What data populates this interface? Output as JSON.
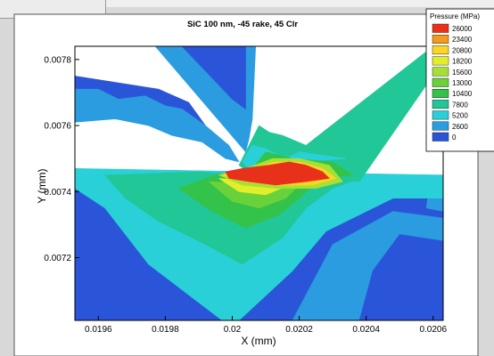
{
  "chart_data": {
    "type": "heatmap",
    "title": "SiC 100 nm, -45 rake, 45 Clr",
    "xlabel": "X (mm)",
    "ylabel": "Y (mm)",
    "xlim": [
      0.01953,
      0.02063
    ],
    "ylim": [
      0.00701,
      0.00784
    ],
    "x_ticks": [
      "0.0196",
      "0.0198",
      "0.02",
      "0.0202",
      "0.0204",
      "0.0206"
    ],
    "x_tick_values": [
      0.0196,
      0.0198,
      0.02,
      0.0202,
      0.0204,
      0.0206
    ],
    "y_ticks": [
      "0.0072",
      "0.0074",
      "0.0076",
      "0.0078"
    ],
    "y_tick_values": [
      0.0072,
      0.0074,
      0.0076,
      0.0078
    ],
    "legend": {
      "title": "Pressure (MPa)",
      "position": "top-right",
      "levels": [
        "26000",
        "23400",
        "20800",
        "18200",
        "15600",
        "13000",
        "10400",
        "7800",
        "5200",
        "2600",
        "0"
      ],
      "colors": [
        "#e8311b",
        "#f59a1d",
        "#fbd624",
        "#e3ee2a",
        "#a6e033",
        "#69d23b",
        "#33c24a",
        "#22c798",
        "#2ad0d8",
        "#2b9cdf",
        "#2a55d8"
      ]
    },
    "regions": [
      {
        "level": "0",
        "points": [
          [
            0.01953,
            0.00701
          ],
          [
            0.02063,
            0.00701
          ],
          [
            0.02063,
            0.00745
          ],
          [
            0.0202,
            0.00744
          ],
          [
            0.0199,
            0.00745
          ],
          [
            0.01953,
            0.00747
          ]
        ]
      },
      {
        "level": "2600",
        "points": [
          [
            0.02018,
            0.00701
          ],
          [
            0.02063,
            0.00701
          ],
          [
            0.02063,
            0.00732
          ],
          [
            0.02048,
            0.00734
          ],
          [
            0.0203,
            0.00724
          ]
        ]
      },
      {
        "level": "0",
        "points": [
          [
            0.02038,
            0.00701
          ],
          [
            0.02063,
            0.00701
          ],
          [
            0.02063,
            0.00725
          ],
          [
            0.0205,
            0.00727
          ],
          [
            0.02042,
            0.00716
          ]
        ]
      },
      {
        "level": "2600",
        "points": [
          [
            0.02058,
            0.00735
          ],
          [
            0.02063,
            0.00734
          ],
          [
            0.02063,
            0.00745
          ],
          [
            0.02059,
            0.00743
          ]
        ]
      },
      {
        "level": "5200",
        "points": [
          [
            0.01953,
            0.00747
          ],
          [
            0.02063,
            0.00745
          ],
          [
            0.02063,
            0.00738
          ],
          [
            0.02048,
            0.00738
          ],
          [
            0.02028,
            0.00728
          ],
          [
            0.02018,
            0.00716
          ],
          [
            0.02002,
            0.00701
          ],
          [
            0.01997,
            0.00701
          ],
          [
            0.01975,
            0.00718
          ],
          [
            0.01962,
            0.00735
          ],
          [
            0.01953,
            0.00741
          ]
        ]
      },
      {
        "level": "7800",
        "points": [
          [
            0.01962,
            0.00745
          ],
          [
            0.01968,
            0.00738
          ],
          [
            0.01978,
            0.00731
          ],
          [
            0.01992,
            0.00724
          ],
          [
            0.02003,
            0.00718
          ],
          [
            0.02015,
            0.00726
          ],
          [
            0.02022,
            0.00735
          ],
          [
            0.0203,
            0.00741
          ],
          [
            0.02038,
            0.00744
          ],
          [
            0.0202,
            0.00744
          ],
          [
            0.0199,
            0.00746
          ]
        ]
      },
      {
        "level": "10400",
        "points": [
          [
            0.01984,
            0.00741
          ],
          [
            0.01994,
            0.00734
          ],
          [
            0.02004,
            0.00729
          ],
          [
            0.02014,
            0.00733
          ],
          [
            0.0202,
            0.00738
          ],
          [
            0.02025,
            0.00743
          ],
          [
            0.01995,
            0.00745
          ]
        ]
      },
      {
        "level": "13000",
        "points": [
          [
            0.01993,
            0.00743
          ],
          [
            0.02,
            0.00737
          ],
          [
            0.02008,
            0.00735
          ],
          [
            0.02016,
            0.00738
          ],
          [
            0.0202,
            0.00742
          ]
        ]
      },
      {
        "level": "18200",
        "points": [
          [
            0.01996,
            0.00744
          ],
          [
            0.02002,
            0.0074
          ],
          [
            0.0201,
            0.00739
          ],
          [
            0.02017,
            0.00742
          ]
        ]
      },
      {
        "level": "0",
        "points": [
          [
            0.01953,
            0.00775
          ],
          [
            0.01953,
            0.0077
          ],
          [
            0.0197,
            0.00762
          ],
          [
            0.01978,
            0.0076
          ],
          [
            0.01985,
            0.00759
          ],
          [
            0.01992,
            0.0076
          ],
          [
            0.01987,
            0.00767
          ],
          [
            0.01978,
            0.00771
          ]
        ]
      },
      {
        "level": "2600",
        "points": [
          [
            0.01953,
            0.00771
          ],
          [
            0.0196,
            0.00771
          ],
          [
            0.01966,
            0.00768
          ],
          [
            0.01974,
            0.00769
          ],
          [
            0.0198,
            0.00766
          ],
          [
            0.01985,
            0.00765
          ],
          [
            0.01992,
            0.0076
          ],
          [
            0.01999,
            0.00754
          ],
          [
            0.02002,
            0.00749
          ],
          [
            0.01998,
            0.0075
          ],
          [
            0.01991,
            0.00755
          ],
          [
            0.01982,
            0.00757
          ],
          [
            0.01975,
            0.0076
          ],
          [
            0.01965,
            0.00762
          ],
          [
            0.01953,
            0.00761
          ]
        ]
      },
      {
        "level": "2600",
        "points": [
          [
            0.01977,
            0.00784
          ],
          [
            0.02007,
            0.00784
          ],
          [
            0.02006,
            0.00762
          ],
          [
            0.02005,
            0.00756
          ],
          [
            0.02004,
            0.00752
          ]
        ]
      },
      {
        "level": "0",
        "points": [
          [
            0.01985,
            0.00784
          ],
          [
            0.02004,
            0.00784
          ],
          [
            0.02004,
            0.00765
          ],
          [
            0.02,
            0.00768
          ]
        ]
      },
      {
        "level": "7800",
        "points": [
          [
            0.02002,
            0.00748
          ],
          [
            0.02006,
            0.00756
          ],
          [
            0.02008,
            0.0076
          ],
          [
            0.02011,
            0.00758
          ],
          [
            0.02015,
            0.00757
          ],
          [
            0.02022,
            0.00754
          ],
          [
            0.0206,
            0.00784
          ],
          [
            0.02066,
            0.00784
          ],
          [
            0.02038,
            0.00743
          ],
          [
            0.02024,
            0.00744
          ],
          [
            0.02014,
            0.00745
          ],
          [
            0.02006,
            0.00745
          ]
        ]
      },
      {
        "level": "5200",
        "points": [
          [
            0.02003,
            0.00749
          ],
          [
            0.02006,
            0.00754
          ],
          [
            0.0201,
            0.00753
          ],
          [
            0.02016,
            0.0075
          ],
          [
            0.0202,
            0.00752
          ],
          [
            0.02034,
            0.0075
          ],
          [
            0.0202,
            0.00749
          ],
          [
            0.02013,
            0.00748
          ],
          [
            0.02005,
            0.00747
          ]
        ]
      },
      {
        "level": "10400",
        "points": [
          [
            0.02006,
            0.00747
          ],
          [
            0.0201,
            0.00752
          ],
          [
            0.02018,
            0.0075
          ],
          [
            0.0203,
            0.00749
          ],
          [
            0.02036,
            0.00745
          ],
          [
            0.02024,
            0.00744
          ],
          [
            0.02014,
            0.00745
          ]
        ]
      },
      {
        "level": "15600",
        "points": [
          [
            0.01996,
            0.00745
          ],
          [
            0.02004,
            0.00747
          ],
          [
            0.02012,
            0.0075
          ],
          [
            0.0202,
            0.0075
          ],
          [
            0.02029,
            0.00748
          ],
          [
            0.02033,
            0.00743
          ],
          [
            0.02025,
            0.00741
          ],
          [
            0.02013,
            0.00741
          ],
          [
            0.02003,
            0.00742
          ]
        ]
      },
      {
        "level": "20800",
        "points": [
          [
            0.01997,
            0.00745
          ],
          [
            0.02005,
            0.00747
          ],
          [
            0.02013,
            0.00749
          ],
          [
            0.0202,
            0.00749
          ],
          [
            0.02027,
            0.00747
          ],
          [
            0.02031,
            0.00744
          ],
          [
            0.02024,
            0.00742
          ],
          [
            0.02013,
            0.00742
          ],
          [
            0.02004,
            0.00743
          ]
        ]
      },
      {
        "level": "26000",
        "points": [
          [
            0.01998,
            0.00746
          ],
          [
            0.02003,
            0.00747
          ],
          [
            0.02011,
            0.00748
          ],
          [
            0.02017,
            0.00749
          ],
          [
            0.02022,
            0.00748
          ],
          [
            0.02027,
            0.00746
          ],
          [
            0.02029,
            0.00744
          ],
          [
            0.02022,
            0.00743
          ],
          [
            0.02013,
            0.00742
          ],
          [
            0.02005,
            0.00743
          ],
          [
            0.01999,
            0.00744
          ]
        ]
      }
    ]
  }
}
